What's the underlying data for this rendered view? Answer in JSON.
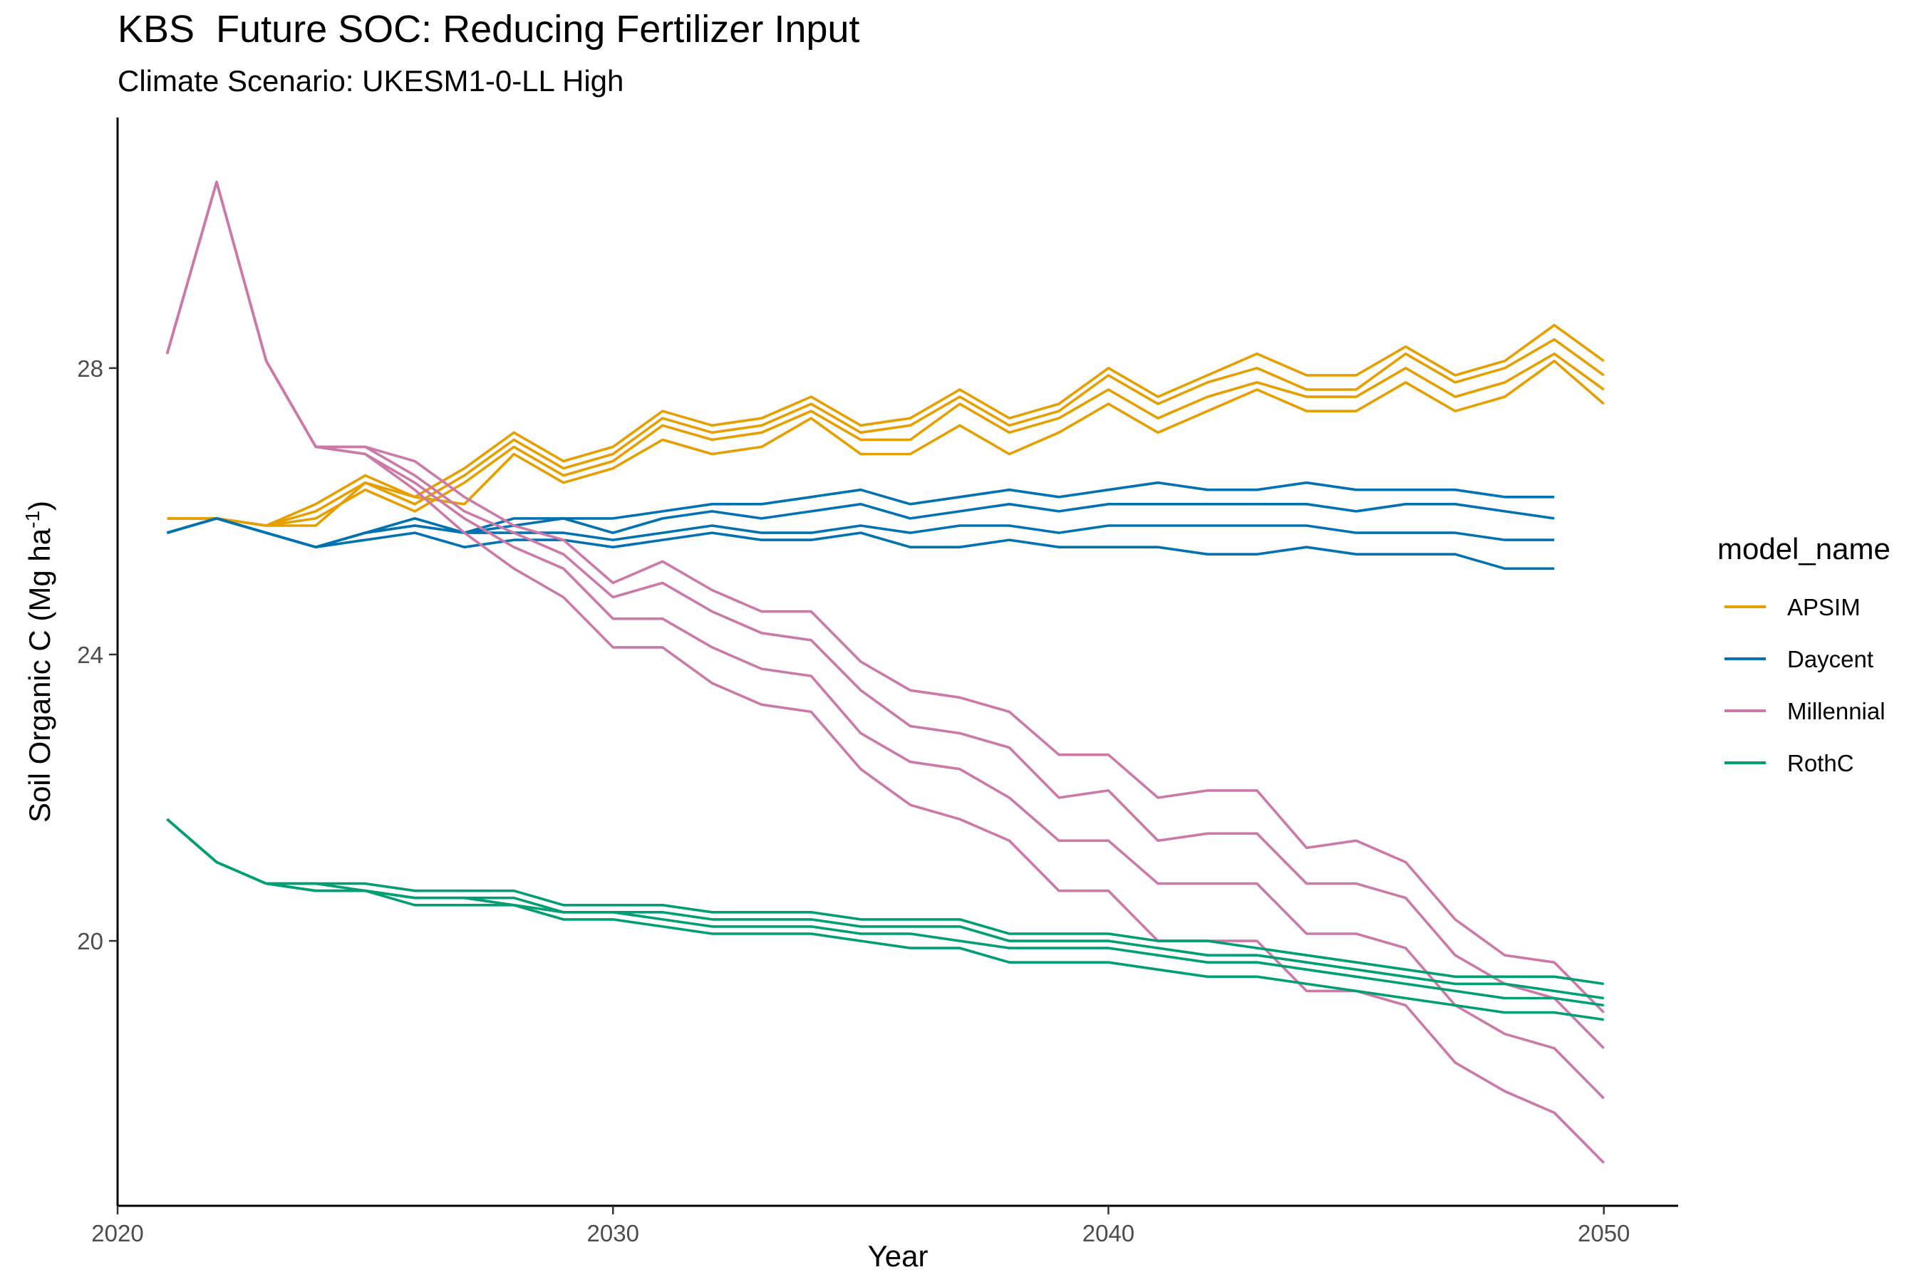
{
  "chart_data": {
    "type": "line",
    "title": "KBS  Future SOC: Reducing Fertilizer Input",
    "subtitle": "Climate Scenario: UKESM1-0-LL High",
    "xlabel": "Year",
    "ylabel": "Soil Organic C (Mg ha",
    "ylabel_superscript": "-1",
    "ylabel_suffix": ")",
    "xlim": [
      2020,
      2051.5
    ],
    "ylim": [
      16.3,
      31.5
    ],
    "x_ticks": [
      2020,
      2030,
      2040,
      2050
    ],
    "y_ticks": [
      20,
      24,
      28
    ],
    "grid": false,
    "legend": {
      "title": "model_name",
      "position": "right"
    },
    "colors": {
      "APSIM": "#E69F00",
      "Daycent": "#0072B2",
      "Millennial": "#CC79A7",
      "RothC": "#009E73"
    },
    "series": [
      {
        "name": "APSIM",
        "x": [
          2021,
          2022,
          2023,
          2024,
          2025,
          2026,
          2027,
          2028,
          2029,
          2030,
          2031,
          2032,
          2033,
          2034,
          2035,
          2036,
          2037,
          2038,
          2039,
          2040,
          2041,
          2042,
          2043,
          2044,
          2045,
          2046,
          2047,
          2048,
          2049,
          2050
        ],
        "lines": [
          [
            25.9,
            25.9,
            25.8,
            26.1,
            26.5,
            26.2,
            26.6,
            27.1,
            26.7,
            26.9,
            27.4,
            27.2,
            27.3,
            27.6,
            27.2,
            27.3,
            27.7,
            27.3,
            27.5,
            28.0,
            27.6,
            27.9,
            28.2,
            27.9,
            27.9,
            28.3,
            27.9,
            28.1,
            28.6,
            28.1
          ],
          [
            25.9,
            25.9,
            25.8,
            26.0,
            26.4,
            26.1,
            26.5,
            27.0,
            26.6,
            26.8,
            27.3,
            27.1,
            27.2,
            27.5,
            27.1,
            27.2,
            27.6,
            27.2,
            27.4,
            27.9,
            27.5,
            27.8,
            28.0,
            27.7,
            27.7,
            28.2,
            27.8,
            28.0,
            28.4,
            27.9
          ],
          [
            25.9,
            25.9,
            25.8,
            25.9,
            26.3,
            26.0,
            26.4,
            26.9,
            26.5,
            26.7,
            27.2,
            27.0,
            27.1,
            27.4,
            27.0,
            27.0,
            27.5,
            27.1,
            27.3,
            27.7,
            27.3,
            27.6,
            27.8,
            27.6,
            27.6,
            28.0,
            27.6,
            27.8,
            28.2,
            27.7
          ],
          [
            25.9,
            25.9,
            25.8,
            25.8,
            26.4,
            26.2,
            26.1,
            26.8,
            26.4,
            26.6,
            27.0,
            26.8,
            26.9,
            27.3,
            26.8,
            26.8,
            27.2,
            26.8,
            27.1,
            27.5,
            27.1,
            27.4,
            27.7,
            27.4,
            27.4,
            27.8,
            27.4,
            27.6,
            28.1,
            27.5
          ]
        ]
      },
      {
        "name": "Daycent",
        "x": [
          2021,
          2022,
          2023,
          2024,
          2025,
          2026,
          2027,
          2028,
          2029,
          2030,
          2031,
          2032,
          2033,
          2034,
          2035,
          2036,
          2037,
          2038,
          2039,
          2040,
          2041,
          2042,
          2043,
          2044,
          2045,
          2046,
          2047,
          2048,
          2049
        ],
        "lines": [
          [
            25.7,
            25.9,
            25.7,
            25.5,
            25.7,
            25.9,
            25.7,
            25.9,
            25.9,
            25.9,
            26.0,
            26.1,
            26.1,
            26.2,
            26.3,
            26.1,
            26.2,
            26.3,
            26.2,
            26.3,
            26.4,
            26.3,
            26.3,
            26.4,
            26.3,
            26.3,
            26.3,
            26.2,
            26.2
          ],
          [
            25.7,
            25.9,
            25.7,
            25.5,
            25.7,
            25.8,
            25.7,
            25.8,
            25.9,
            25.7,
            25.9,
            26.0,
            25.9,
            26.0,
            26.1,
            25.9,
            26.0,
            26.1,
            26.0,
            26.1,
            26.1,
            26.1,
            26.1,
            26.1,
            26.0,
            26.1,
            26.1,
            26.0,
            25.9
          ],
          [
            25.7,
            25.9,
            25.7,
            25.5,
            25.7,
            25.8,
            25.7,
            25.7,
            25.7,
            25.6,
            25.7,
            25.8,
            25.7,
            25.7,
            25.8,
            25.7,
            25.8,
            25.8,
            25.7,
            25.8,
            25.8,
            25.8,
            25.8,
            25.8,
            25.7,
            25.7,
            25.7,
            25.6,
            25.6
          ],
          [
            25.7,
            25.9,
            25.7,
            25.5,
            25.6,
            25.7,
            25.5,
            25.6,
            25.6,
            25.5,
            25.6,
            25.7,
            25.6,
            25.6,
            25.7,
            25.5,
            25.5,
            25.6,
            25.5,
            25.5,
            25.5,
            25.4,
            25.4,
            25.5,
            25.4,
            25.4,
            25.4,
            25.2,
            25.2
          ]
        ]
      },
      {
        "name": "Millennial",
        "x": [
          2021,
          2022,
          2023,
          2024,
          2025,
          2026,
          2027,
          2028,
          2029,
          2030,
          2031,
          2032,
          2033,
          2034,
          2035,
          2036,
          2037,
          2038,
          2039,
          2040,
          2041,
          2042,
          2043,
          2044,
          2045,
          2046,
          2047,
          2048,
          2049,
          2050
        ],
        "lines": [
          [
            28.2,
            30.6,
            28.1,
            26.9,
            26.9,
            26.7,
            26.2,
            25.8,
            25.6,
            25.0,
            25.3,
            24.9,
            24.6,
            24.6,
            23.9,
            23.5,
            23.4,
            23.2,
            22.6,
            22.6,
            22.0,
            22.1,
            22.1,
            21.3,
            21.4,
            21.1,
            20.3,
            19.8,
            19.7,
            19.0
          ],
          [
            28.2,
            30.6,
            28.1,
            26.9,
            26.9,
            26.5,
            26.0,
            25.7,
            25.4,
            24.8,
            25.0,
            24.6,
            24.3,
            24.2,
            23.5,
            23.0,
            22.9,
            22.7,
            22.0,
            22.1,
            21.4,
            21.5,
            21.5,
            20.8,
            20.8,
            20.6,
            19.8,
            19.4,
            19.2,
            18.5
          ],
          [
            28.2,
            30.6,
            28.1,
            26.9,
            26.8,
            26.4,
            25.9,
            25.5,
            25.2,
            24.5,
            24.5,
            24.1,
            23.8,
            23.7,
            22.9,
            22.5,
            22.4,
            22.0,
            21.4,
            21.4,
            20.8,
            20.8,
            20.8,
            20.1,
            20.1,
            19.9,
            19.1,
            18.7,
            18.5,
            17.8
          ],
          [
            28.2,
            30.6,
            28.1,
            26.9,
            26.8,
            26.3,
            25.7,
            25.2,
            24.8,
            24.1,
            24.1,
            23.6,
            23.3,
            23.2,
            22.4,
            21.9,
            21.7,
            21.4,
            20.7,
            20.7,
            20.0,
            20.0,
            20.0,
            19.3,
            19.3,
            19.1,
            18.3,
            17.9,
            17.6,
            16.9
          ]
        ]
      },
      {
        "name": "RothC",
        "x": [
          2021,
          2022,
          2023,
          2024,
          2025,
          2026,
          2027,
          2028,
          2029,
          2030,
          2031,
          2032,
          2033,
          2034,
          2035,
          2036,
          2037,
          2038,
          2039,
          2040,
          2041,
          2042,
          2043,
          2044,
          2045,
          2046,
          2047,
          2048,
          2049,
          2050
        ],
        "lines": [
          [
            21.7,
            21.1,
            20.8,
            20.8,
            20.8,
            20.7,
            20.7,
            20.7,
            20.5,
            20.5,
            20.5,
            20.4,
            20.4,
            20.4,
            20.3,
            20.3,
            20.3,
            20.1,
            20.1,
            20.1,
            20.0,
            20.0,
            19.9,
            19.8,
            19.7,
            19.6,
            19.5,
            19.5,
            19.5,
            19.4
          ],
          [
            21.7,
            21.1,
            20.8,
            20.8,
            20.7,
            20.6,
            20.6,
            20.6,
            20.4,
            20.4,
            20.4,
            20.3,
            20.3,
            20.3,
            20.2,
            20.2,
            20.2,
            20.0,
            20.0,
            20.0,
            19.9,
            19.8,
            19.8,
            19.7,
            19.6,
            19.5,
            19.4,
            19.4,
            19.3,
            19.2
          ],
          [
            21.7,
            21.1,
            20.8,
            20.7,
            20.7,
            20.6,
            20.6,
            20.5,
            20.4,
            20.4,
            20.3,
            20.2,
            20.2,
            20.2,
            20.1,
            20.1,
            20.0,
            19.9,
            19.9,
            19.9,
            19.8,
            19.7,
            19.7,
            19.6,
            19.5,
            19.4,
            19.3,
            19.2,
            19.2,
            19.1
          ],
          [
            21.7,
            21.1,
            20.8,
            20.7,
            20.7,
            20.5,
            20.5,
            20.5,
            20.3,
            20.3,
            20.2,
            20.1,
            20.1,
            20.1,
            20.0,
            19.9,
            19.9,
            19.7,
            19.7,
            19.7,
            19.6,
            19.5,
            19.5,
            19.4,
            19.3,
            19.2,
            19.1,
            19.0,
            19.0,
            18.9
          ]
        ]
      }
    ]
  }
}
